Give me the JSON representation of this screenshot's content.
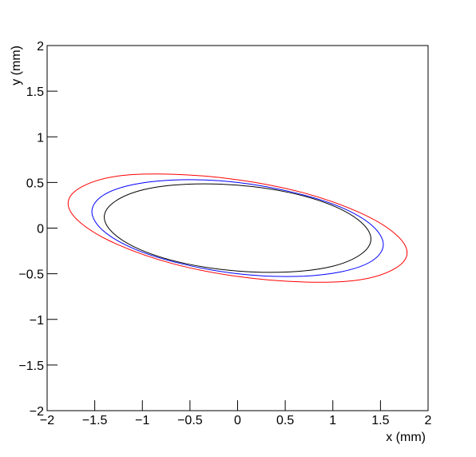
{
  "chart_data": {
    "type": "line",
    "x_label": "x (mm)",
    "y_label": "y (mm)",
    "xlim": [
      -2,
      2
    ],
    "ylim": [
      -2,
      2
    ],
    "xticks": [
      {
        "value": -2,
        "label": "−2"
      },
      {
        "value": -1.5,
        "label": "−1.5"
      },
      {
        "value": -1,
        "label": "−1"
      },
      {
        "value": -0.5,
        "label": "−0.5"
      },
      0,
      0.5,
      1,
      1.5,
      2
    ],
    "yticks": [
      {
        "value": -2,
        "label": "−2"
      },
      {
        "value": -1.5,
        "label": "−1.5"
      },
      {
        "value": -1,
        "label": "−1"
      },
      {
        "value": -0.5,
        "label": "−0.5"
      },
      0,
      0.5,
      1,
      1.5,
      2
    ],
    "series": [
      {
        "color": "#ff0000",
        "x": [
          1.78,
          1.64,
          1.26,
          0.68,
          0,
          -0.68,
          -1.26,
          -1.64,
          -1.78,
          -1.64,
          -1.26,
          -0.68,
          0,
          0.68,
          1.26,
          1.64,
          1.78
        ],
        "values": [
          -0.27,
          -0.05,
          0.18,
          0.39,
          0.53,
          0.59,
          0.57,
          0.45,
          0.27,
          0.05,
          -0.18,
          -0.39,
          -0.53,
          -0.59,
          -0.57,
          -0.45,
          -0.27
        ]
      },
      {
        "color": "#0000ff",
        "x": [
          1.53,
          1.41,
          1.08,
          0.59,
          0,
          -0.59,
          -1.08,
          -1.41,
          -1.53,
          -1.41,
          -1.08,
          -0.59,
          0,
          0.59,
          1.08,
          1.41,
          1.53
        ],
        "values": [
          -0.18,
          0.03,
          0.23,
          0.39,
          0.5,
          0.53,
          0.48,
          0.36,
          0.18,
          -0.03,
          -0.23,
          -0.39,
          -0.5,
          -0.53,
          -0.48,
          -0.36,
          -0.18
        ]
      },
      {
        "color": "#000000",
        "x": [
          1.4,
          1.29,
          0.99,
          0.54,
          0,
          -0.54,
          -0.99,
          -1.29,
          -1.4,
          -1.29,
          -0.99,
          -0.54,
          0,
          0.54,
          0.99,
          1.29,
          1.4
        ],
        "values": [
          -0.12,
          0.07,
          0.25,
          0.39,
          0.47,
          0.48,
          0.42,
          0.29,
          0.12,
          -0.07,
          -0.25,
          -0.39,
          -0.47,
          -0.48,
          -0.42,
          -0.29,
          -0.12
        ]
      }
    ]
  }
}
